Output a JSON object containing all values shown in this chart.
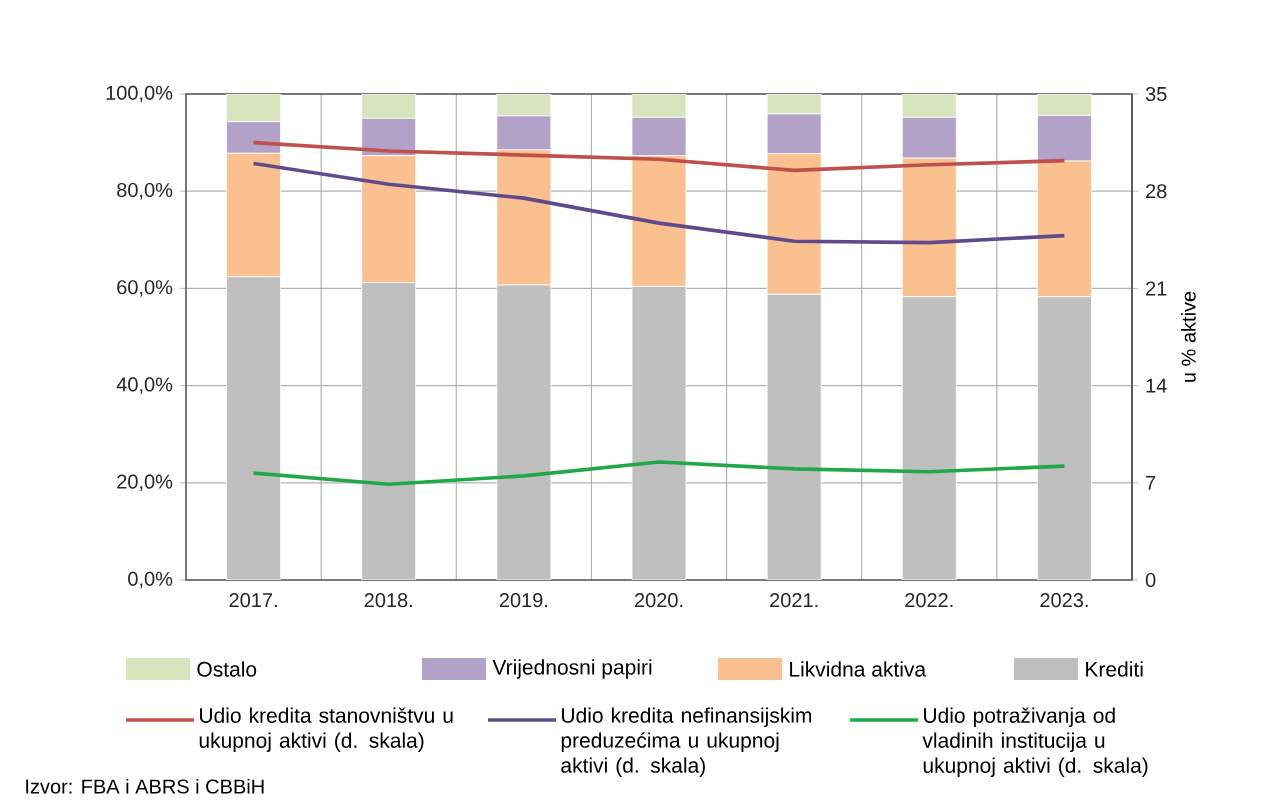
{
  "chart_data": {
    "type": "bar",
    "stacked": true,
    "grid": true,
    "legend": "bottom",
    "categories": [
      "2017.",
      "2018.",
      "2019.",
      "2020.",
      "2021.",
      "2022.",
      "2023."
    ],
    "ylim": [
      0,
      100
    ],
    "yticks": [
      {
        "value": 0,
        "label": "0,0%"
      },
      {
        "value": 20,
        "label": "20,0%"
      },
      {
        "value": 40,
        "label": "40,0%"
      },
      {
        "value": 60,
        "label": "60,0%"
      },
      {
        "value": 80,
        "label": "80,0%"
      },
      {
        "value": 100,
        "label": "100,0%"
      }
    ],
    "y2lim": [
      0,
      35
    ],
    "y2ticks": [
      0,
      7,
      14,
      21,
      28,
      35
    ],
    "y2label": "u % aktive",
    "series": [
      {
        "name": "Krediti",
        "color": "#bfbfbf",
        "values": [
          62.4,
          61.2,
          60.7,
          60.4,
          58.8,
          58.3,
          58.3
        ]
      },
      {
        "name": "Likvidna aktiva",
        "color": "#fac090",
        "values": [
          25.4,
          26.1,
          27.8,
          26.9,
          28.9,
          28.5,
          27.9
        ]
      },
      {
        "name": "Vrijednosni papiri",
        "color": "#b3a2c7",
        "values": [
          6.5,
          7.7,
          7.0,
          7.9,
          8.2,
          8.4,
          9.4
        ]
      },
      {
        "name": "Ostalo",
        "color": "#d7e4bd",
        "values": [
          5.7,
          5.0,
          4.5,
          4.8,
          4.1,
          4.8,
          4.4
        ]
      },
      {
        "name": "Udio kredita stanovništvu u ukupnoj aktivi (d. skala)",
        "type": "line",
        "axis": "y2",
        "color": "#c0504d",
        "values": [
          31.5,
          30.9,
          30.6,
          30.3,
          29.5,
          29.9,
          30.2
        ]
      },
      {
        "name": "Udio kredita nefinansijskim preduzećima u ukupnoj aktivi (d. skala)",
        "type": "line",
        "axis": "y2",
        "color": "#5f4b8b",
        "values": [
          30.0,
          28.5,
          27.5,
          25.7,
          24.4,
          24.3,
          24.8
        ]
      },
      {
        "name": "Udio potraživanja od vladinih institucija u ukupnoj aktivi (d. skala)",
        "type": "line",
        "axis": "y2",
        "color": "#21a84a",
        "values": [
          7.7,
          6.9,
          7.5,
          8.5,
          8.0,
          7.8,
          8.2
        ]
      }
    ],
    "annotations": [
      "Izvor: FBA i ABRS i CBBiH"
    ]
  }
}
